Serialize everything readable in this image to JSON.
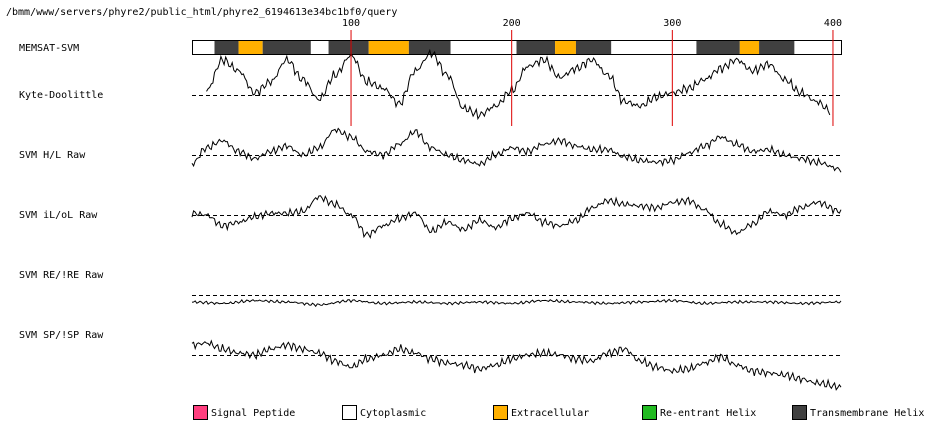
{
  "header": {
    "path": "/bmm/www/servers/phyre2/public_html/phyre2_6194613e34bc1bf0/query"
  },
  "chart_data": {
    "type": "line",
    "sequence_length": 405,
    "position_ticks": [
      100,
      200,
      300,
      400
    ],
    "memsat": {
      "label": "MEMSAT-SVM",
      "segments": [
        {
          "start": 1,
          "end": 15,
          "type": "cytoplasmic"
        },
        {
          "start": 15,
          "end": 30,
          "type": "transmembrane"
        },
        {
          "start": 30,
          "end": 45,
          "type": "extracellular"
        },
        {
          "start": 45,
          "end": 75,
          "type": "transmembrane"
        },
        {
          "start": 75,
          "end": 86,
          "type": "cytoplasmic"
        },
        {
          "start": 86,
          "end": 111,
          "type": "transmembrane"
        },
        {
          "start": 111,
          "end": 136,
          "type": "extracellular"
        },
        {
          "start": 136,
          "end": 162,
          "type": "transmembrane"
        },
        {
          "start": 162,
          "end": 203,
          "type": "cytoplasmic"
        },
        {
          "start": 203,
          "end": 227,
          "type": "transmembrane"
        },
        {
          "start": 227,
          "end": 240,
          "type": "extracellular"
        },
        {
          "start": 240,
          "end": 262,
          "type": "transmembrane"
        },
        {
          "start": 262,
          "end": 315,
          "type": "cytoplasmic"
        },
        {
          "start": 315,
          "end": 342,
          "type": "transmembrane"
        },
        {
          "start": 342,
          "end": 354,
          "type": "extracellular"
        },
        {
          "start": 354,
          "end": 376,
          "type": "transmembrane"
        },
        {
          "start": 376,
          "end": 405,
          "type": "cytoplasmic"
        }
      ]
    },
    "series": [
      {
        "name": "Kyte-Doolittle",
        "x": [
          10,
          20,
          30,
          40,
          50,
          60,
          70,
          80,
          90,
          100,
          110,
          120,
          130,
          140,
          150,
          160,
          170,
          180,
          190,
          200,
          210,
          220,
          230,
          240,
          250,
          260,
          270,
          280,
          290,
          300,
          310,
          320,
          330,
          340,
          350,
          360,
          370,
          380,
          390,
          398
        ],
        "values": [
          0.2,
          1.6,
          1.1,
          0.1,
          0.6,
          1.6,
          0.7,
          -0.2,
          0.9,
          1.8,
          0.6,
          0.3,
          -0.4,
          1.1,
          1.9,
          0.9,
          -0.6,
          -0.9,
          -0.5,
          0.2,
          1.3,
          1.6,
          0.8,
          1.2,
          1.6,
          0.9,
          -0.3,
          -0.5,
          -0.1,
          0.1,
          0.3,
          0.7,
          1.2,
          1.6,
          1.1,
          1.4,
          0.7,
          0.1,
          -0.3,
          -0.7
        ]
      },
      {
        "name": "SVM H/L Raw",
        "x": [
          1,
          10,
          20,
          30,
          40,
          50,
          60,
          70,
          80,
          90,
          100,
          110,
          120,
          130,
          140,
          150,
          160,
          170,
          180,
          190,
          200,
          210,
          220,
          230,
          240,
          250,
          260,
          270,
          280,
          290,
          300,
          310,
          320,
          330,
          340,
          350,
          360,
          370,
          380,
          390,
          405
        ],
        "values": [
          -0.5,
          0.4,
          0.8,
          0.2,
          -0.2,
          0.2,
          0.5,
          0.0,
          0.4,
          1.4,
          1.0,
          0.2,
          0.0,
          0.6,
          1.3,
          0.4,
          0.0,
          -0.3,
          -0.5,
          0.0,
          0.4,
          0.2,
          0.6,
          0.8,
          0.5,
          0.3,
          0.3,
          -0.1,
          -0.3,
          -0.4,
          -0.3,
          0.1,
          0.5,
          1.0,
          0.6,
          0.2,
          0.3,
          0.0,
          -0.2,
          -0.4,
          -0.8
        ]
      },
      {
        "name": "SVM iL/oL Raw",
        "x": [
          1,
          10,
          20,
          30,
          40,
          50,
          60,
          70,
          80,
          90,
          100,
          110,
          120,
          130,
          140,
          150,
          160,
          170,
          180,
          190,
          200,
          210,
          220,
          230,
          240,
          250,
          260,
          270,
          280,
          290,
          300,
          310,
          320,
          330,
          340,
          350,
          360,
          370,
          380,
          390,
          405
        ],
        "values": [
          0.1,
          0.0,
          -0.6,
          -0.4,
          -0.1,
          0.1,
          0.1,
          0.2,
          1.0,
          0.6,
          0.0,
          -1.1,
          -0.6,
          -0.2,
          0.1,
          -0.9,
          -0.4,
          -0.8,
          -0.3,
          -0.7,
          -0.2,
          0.1,
          -0.4,
          -0.6,
          -0.3,
          0.4,
          0.8,
          0.6,
          0.5,
          0.4,
          0.7,
          0.8,
          0.3,
          -0.5,
          -1.0,
          -0.5,
          0.2,
          0.0,
          0.4,
          0.7,
          0.2
        ]
      },
      {
        "name": "SVM RE/!RE Raw",
        "x": [
          1,
          20,
          40,
          60,
          80,
          100,
          120,
          140,
          160,
          180,
          200,
          220,
          240,
          260,
          280,
          300,
          320,
          340,
          360,
          380,
          405
        ],
        "values": [
          -0.5,
          -0.6,
          -0.4,
          -0.5,
          -0.7,
          -0.4,
          -0.6,
          -0.5,
          -0.6,
          -0.5,
          -0.6,
          -0.4,
          -0.5,
          -0.6,
          -0.5,
          -0.4,
          -0.6,
          -0.5,
          -0.5,
          -0.6,
          -0.5
        ]
      },
      {
        "name": "SVM SP/!SP Raw",
        "x": [
          1,
          10,
          20,
          30,
          40,
          50,
          60,
          70,
          80,
          90,
          100,
          110,
          120,
          130,
          140,
          150,
          160,
          170,
          180,
          190,
          200,
          210,
          220,
          230,
          240,
          250,
          260,
          270,
          280,
          290,
          300,
          310,
          320,
          330,
          340,
          350,
          360,
          370,
          380,
          390,
          405
        ],
        "values": [
          0.5,
          0.6,
          0.3,
          0.1,
          0.0,
          0.3,
          0.5,
          0.3,
          0.1,
          -0.3,
          -0.6,
          -0.2,
          0.0,
          0.3,
          0.1,
          -0.2,
          -0.4,
          -0.5,
          -0.7,
          -0.5,
          -0.2,
          0.0,
          0.1,
          0.0,
          -0.2,
          -0.3,
          0.1,
          0.3,
          -0.3,
          -0.6,
          -0.8,
          -0.7,
          -0.4,
          -0.1,
          -0.5,
          -0.8,
          -0.9,
          -1.0,
          -1.2,
          -1.4,
          -1.6
        ]
      }
    ],
    "legend": [
      {
        "label": "Signal Peptide",
        "color": "#ff3f7f"
      },
      {
        "label": "Cytoplasmic",
        "color": "#ffffff"
      },
      {
        "label": "Extracellular",
        "color": "#ffb000"
      },
      {
        "label": "Re-entrant Helix",
        "color": "#22bb22"
      },
      {
        "label": "Transmembrane Helix",
        "color": "#404040"
      }
    ],
    "colors": {
      "cytoplasmic": "#ffffff",
      "extracellular": "#ffb000",
      "transmembrane": "#404040",
      "marker": "#dd0000"
    }
  }
}
